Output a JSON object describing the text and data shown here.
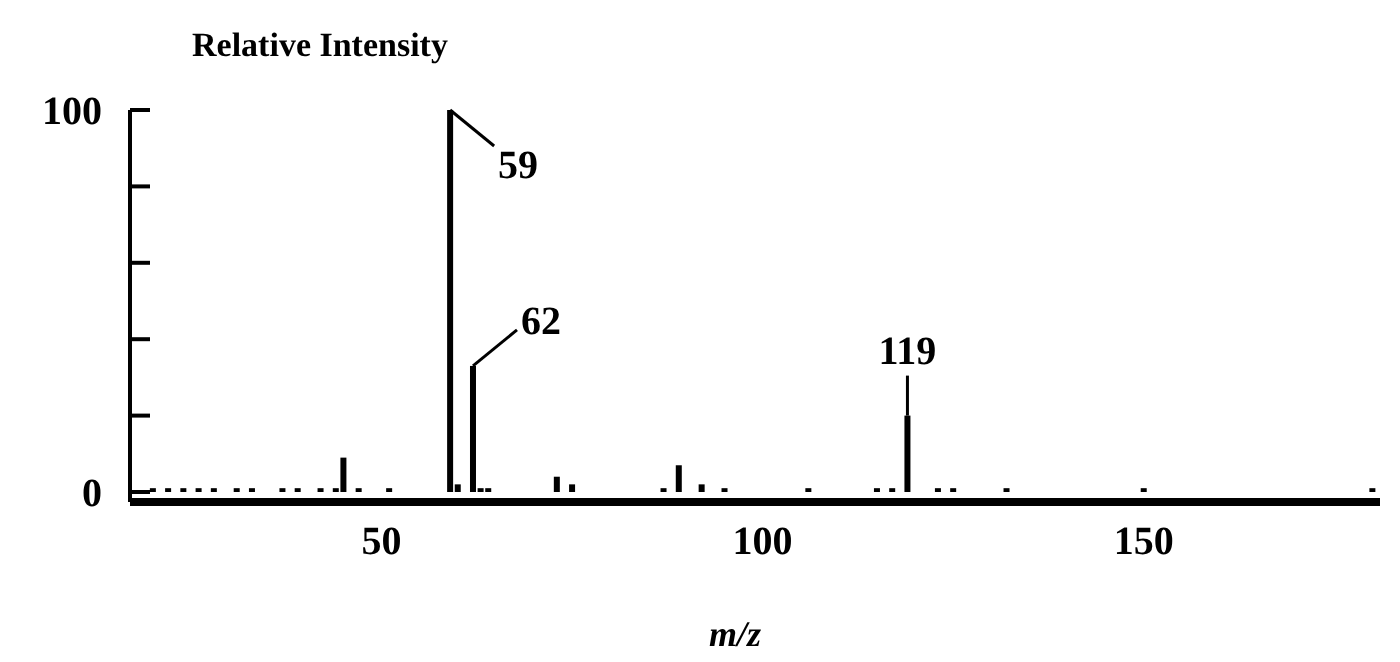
{
  "chart_data": {
    "type": "bar",
    "title": "Relative Intensity",
    "xlabel": "m/z",
    "x": [
      20,
      22,
      24,
      26,
      28,
      31,
      33,
      37,
      39,
      42,
      44,
      45,
      47,
      51,
      59,
      60,
      62,
      63,
      64,
      73,
      75,
      87,
      89,
      92,
      95,
      106,
      115,
      117,
      119,
      123,
      125,
      132,
      150,
      180
    ],
    "values": [
      1,
      1,
      1,
      1,
      1,
      1,
      1,
      1,
      1,
      1,
      1,
      9,
      1,
      1,
      100,
      2,
      33,
      1,
      1,
      4,
      2,
      1,
      7,
      2,
      1,
      1,
      1,
      1,
      20,
      1,
      1,
      1,
      1,
      1
    ],
    "color": "#000000",
    "xlim": [
      17,
      181
    ],
    "xticks": [
      50,
      100,
      150
    ],
    "ylim": [
      0,
      100
    ],
    "yticks": [
      0,
      {
        "value": 20,
        "label": null
      },
      {
        "value": 40,
        "label": null
      },
      {
        "value": 60,
        "label": null
      },
      {
        "value": 80,
        "label": null
      },
      100
    ],
    "annotations": [
      {
        "text": "59",
        "x": 59,
        "y": 100
      },
      {
        "text": "62",
        "x": 62,
        "y": 33
      },
      {
        "text": "119",
        "x": 119,
        "y": 20
      }
    ],
    "grid": false
  }
}
